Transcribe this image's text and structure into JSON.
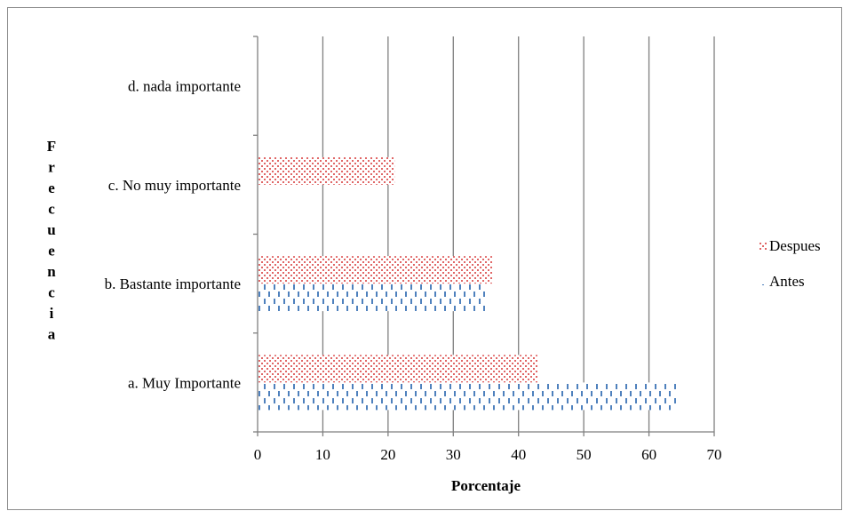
{
  "chart_data": {
    "type": "bar",
    "orientation": "horizontal",
    "categories": [
      "a. Muy Importante",
      "b. Bastante importante",
      "c. No muy importante",
      "d. nada importante"
    ],
    "series": [
      {
        "name": "Antes",
        "values": [
          64.5,
          35,
          0,
          0
        ],
        "color": "#4f81bd",
        "pattern": "vertical-dashes"
      },
      {
        "name": "Despues",
        "values": [
          43,
          36,
          21,
          0
        ],
        "color": "#e06666",
        "pattern": "dots"
      }
    ],
    "xlabel": "Porcentaje",
    "ylabel": "Frecuencia",
    "xlim": [
      0,
      70
    ],
    "xticks": [
      "0",
      "10",
      "20",
      "30",
      "40",
      "50",
      "60",
      "70"
    ],
    "grid": "vertical",
    "legend_position": "right",
    "legend": [
      "Despues",
      "Antes"
    ]
  }
}
